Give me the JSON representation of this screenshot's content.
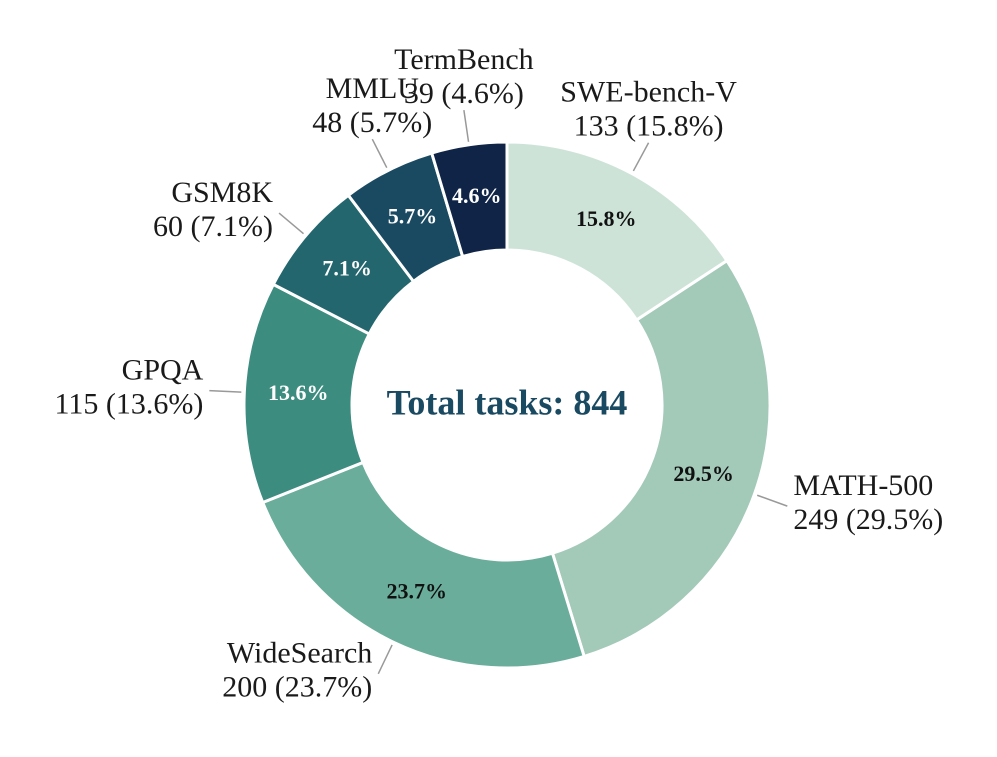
{
  "chart_data": {
    "type": "donut",
    "center_label": "Total tasks: 844",
    "categories": [
      "SWE-bench-V",
      "MATH-500",
      "WideSearch",
      "GPQA",
      "GSM8K",
      "MMLU",
      "TermBench"
    ],
    "values": [
      133,
      249,
      200,
      115,
      60,
      48,
      39
    ],
    "value_labels": [
      "133 (15.8%)",
      "249 (29.5%)",
      "200 (23.7%)",
      "115 (13.6%)",
      "60 (7.1%)",
      "48 (5.7%)",
      "39 (4.6%)"
    ],
    "percent_labels": [
      "15.8%",
      "29.5%",
      "23.7%",
      "13.6%",
      "7.1%",
      "5.7%",
      "4.6%"
    ],
    "colors": [
      "#cde3d8",
      "#a3c9b9",
      "#6aad9b",
      "#3d8c80",
      "#23666e",
      "#1a4a62",
      "#0f2446"
    ]
  }
}
